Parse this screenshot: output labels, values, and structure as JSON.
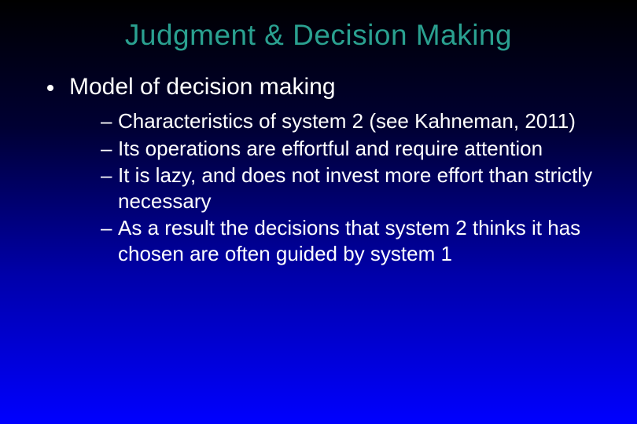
{
  "colors": {
    "title": "#2aa090",
    "body": "#ffffff",
    "bullet": "#ffffff"
  },
  "fontsizes": {
    "title": 37,
    "l1": 30,
    "l2": 26
  },
  "title": "Judgment & Decision Making",
  "l1": "Model of decision making",
  "l2": [
    "Characteristics of system 2 (see Kahneman, 2011)",
    "Its operations are effortful and require attention",
    "It is lazy, and does not invest more effort than strictly necessary",
    "As a result the decisions that system 2 thinks it has chosen are often guided by system 1"
  ]
}
